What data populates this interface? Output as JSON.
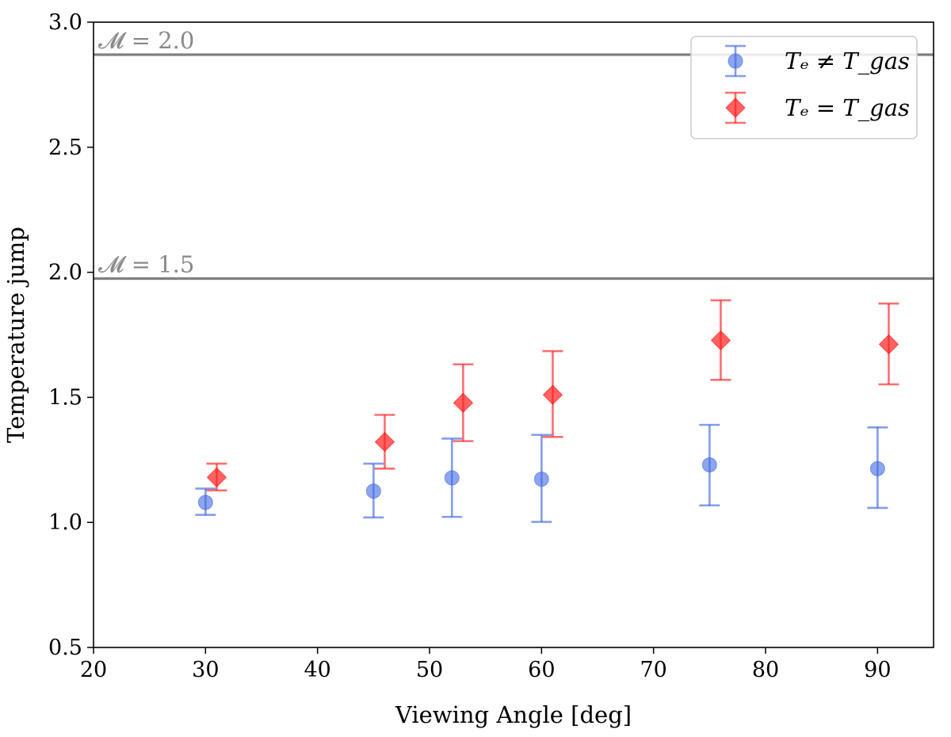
{
  "chart_data": {
    "type": "scatter",
    "xlabel": "Viewing Angle [deg]",
    "ylabel": "Temperature jump",
    "xlim": [
      20,
      95
    ],
    "ylim": [
      0.5,
      3.0
    ],
    "xticks": [
      20,
      30,
      40,
      50,
      60,
      70,
      80,
      90
    ],
    "yticks": [
      0.5,
      1.0,
      1.5,
      2.0,
      2.5,
      3.0
    ],
    "x_tick_labels": [
      "20",
      "30",
      "40",
      "50",
      "60",
      "70",
      "80",
      "90"
    ],
    "y_tick_labels": [
      "0.5",
      "1.0",
      "1.5",
      "2.0",
      "2.5",
      "3.0"
    ],
    "grid": false,
    "legend_position": "top-right",
    "reference_lines": [
      {
        "label": "𝓜 = 2.0",
        "y": 2.87,
        "color": "#808080"
      },
      {
        "label": "𝓜 = 1.5",
        "y": 1.975,
        "color": "#808080"
      }
    ],
    "series": [
      {
        "name": "Tₑ ≠ T_gas",
        "marker": "circle",
        "color": "#4169E1",
        "points": [
          {
            "x": 30,
            "y": 1.08,
            "ylow": 1.03,
            "yhigh": 1.135
          },
          {
            "x": 45,
            "y": 1.125,
            "ylow": 1.02,
            "yhigh": 1.235
          },
          {
            "x": 52,
            "y": 1.178,
            "ylow": 1.022,
            "yhigh": 1.335
          },
          {
            "x": 60,
            "y": 1.173,
            "ylow": 1.002,
            "yhigh": 1.35
          },
          {
            "x": 75,
            "y": 1.23,
            "ylow": 1.068,
            "yhigh": 1.39
          },
          {
            "x": 90,
            "y": 1.215,
            "ylow": 1.058,
            "yhigh": 1.38
          }
        ]
      },
      {
        "name": "Tₑ = T_gas",
        "marker": "diamond",
        "color": "#FF2020",
        "points": [
          {
            "x": 31,
            "y": 1.18,
            "ylow": 1.128,
            "yhigh": 1.235
          },
          {
            "x": 46,
            "y": 1.322,
            "ylow": 1.215,
            "yhigh": 1.43
          },
          {
            "x": 53,
            "y": 1.478,
            "ylow": 1.325,
            "yhigh": 1.632
          },
          {
            "x": 61,
            "y": 1.51,
            "ylow": 1.342,
            "yhigh": 1.685
          },
          {
            "x": 76,
            "y": 1.728,
            "ylow": 1.57,
            "yhigh": 1.888
          },
          {
            "x": 91,
            "y": 1.712,
            "ylow": 1.552,
            "yhigh": 1.875
          }
        ]
      }
    ]
  }
}
